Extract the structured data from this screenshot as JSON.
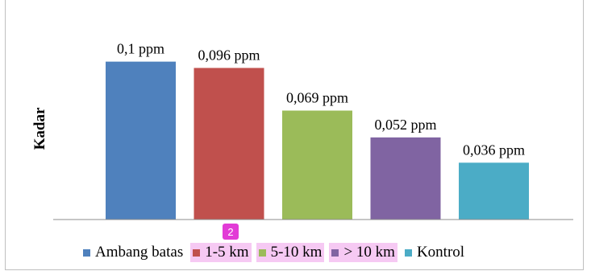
{
  "chart_data": {
    "type": "bar",
    "ylabel": "Kadar",
    "ylim": [
      0,
      0.11
    ],
    "series": [
      {
        "name": "Ambang batas",
        "value": 0.1,
        "label": "0,1 ppm",
        "color": "#4f81bd"
      },
      {
        "name": "1-5 km",
        "value": 0.096,
        "label": "0,096 ppm",
        "color": "#c0504d"
      },
      {
        "name": "5-10 km",
        "value": 0.069,
        "label": "0,069 ppm",
        "color": "#9bbb59"
      },
      {
        "name": "> 10 km",
        "value": 0.052,
        "label": "0,052 ppm",
        "color": "#8064a2"
      },
      {
        "name": "Kontrol",
        "value": 0.036,
        "label": "0,036 ppm",
        "color": "#4bacc6"
      }
    ],
    "legend_position": "bottom"
  },
  "badge": {
    "label": "2",
    "color": "#e23bd6"
  },
  "highlight_color": "#f6c9f3"
}
